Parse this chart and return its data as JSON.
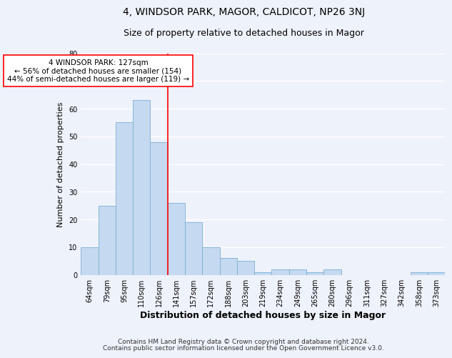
{
  "title": "4, WINDSOR PARK, MAGOR, CALDICOT, NP26 3NJ",
  "subtitle": "Size of property relative to detached houses in Magor",
  "xlabel": "Distribution of detached houses by size in Magor",
  "ylabel": "Number of detached properties",
  "categories": [
    "64sqm",
    "79sqm",
    "95sqm",
    "110sqm",
    "126sqm",
    "141sqm",
    "157sqm",
    "172sqm",
    "188sqm",
    "203sqm",
    "219sqm",
    "234sqm",
    "249sqm",
    "265sqm",
    "280sqm",
    "296sqm",
    "311sqm",
    "327sqm",
    "342sqm",
    "358sqm",
    "373sqm"
  ],
  "values": [
    10,
    25,
    55,
    63,
    48,
    26,
    19,
    10,
    6,
    5,
    1,
    2,
    2,
    1,
    2,
    0,
    0,
    0,
    0,
    1,
    1
  ],
  "bar_color": "#c5d9f0",
  "bar_edge_color": "#7bafd4",
  "vline_x": 4.5,
  "vline_color": "red",
  "annotation_text": "4 WINDSOR PARK: 127sqm\n← 56% of detached houses are smaller (154)\n44% of semi-detached houses are larger (119) →",
  "annotation_box_color": "white",
  "annotation_box_edge_color": "red",
  "ylim": [
    0,
    80
  ],
  "yticks": [
    0,
    10,
    20,
    30,
    40,
    50,
    60,
    70,
    80
  ],
  "footnote1": "Contains HM Land Registry data © Crown copyright and database right 2024.",
  "footnote2": "Contains public sector information licensed under the Open Government Licence v3.0.",
  "background_color": "#eef2fa",
  "grid_color": "white",
  "title_fontsize": 10,
  "subtitle_fontsize": 9,
  "xlabel_fontsize": 9,
  "ylabel_fontsize": 8,
  "tick_fontsize": 7,
  "annotation_fontsize": 7.5,
  "footnote_fontsize": 6.5
}
